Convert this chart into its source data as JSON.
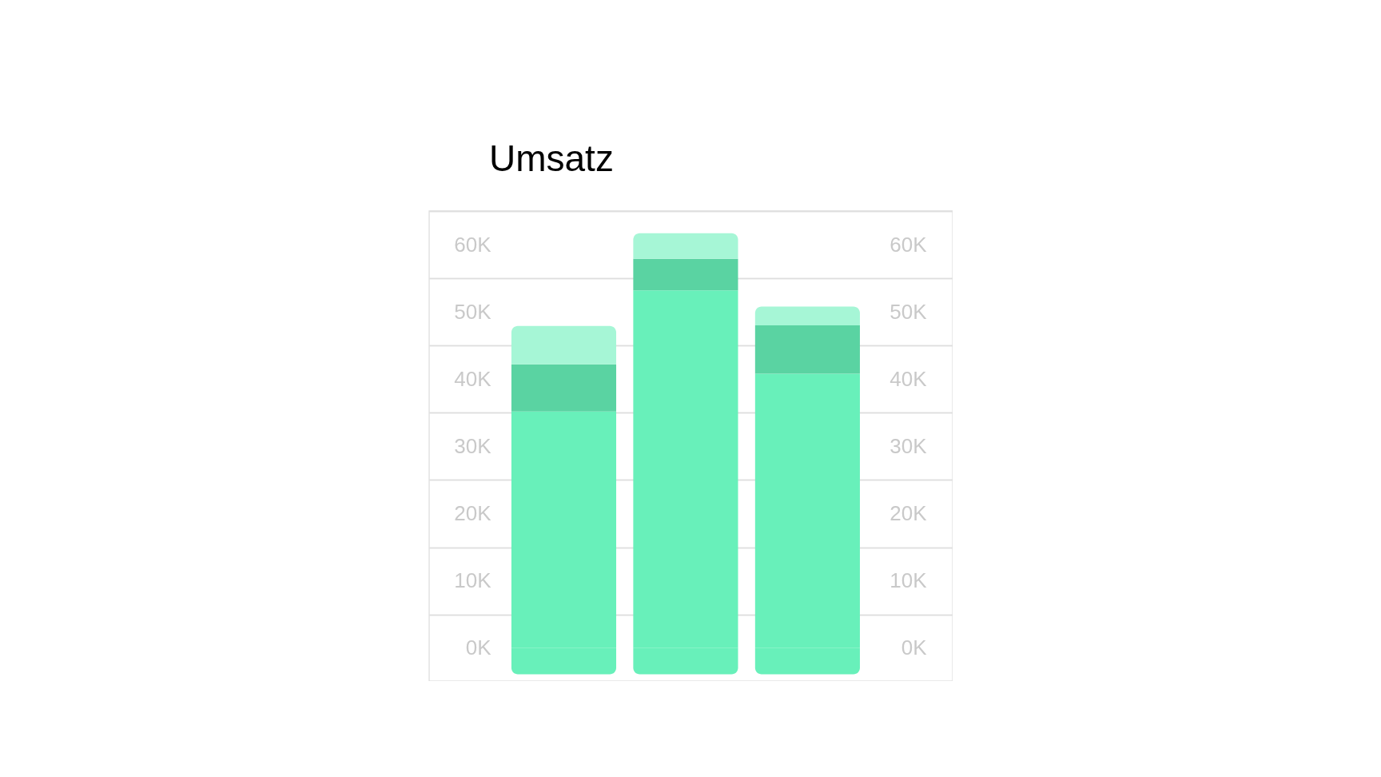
{
  "chart_data": {
    "type": "bar",
    "title": "Umsatz",
    "categories": [
      null,
      null,
      null
    ],
    "stacked": true,
    "series": [
      {
        "color": "#68f0ba",
        "values": [
          -3900,
          -3900,
          -3900
        ]
      },
      {
        "color": "#68f0ba",
        "values": [
          35200,
          53200,
          40800
        ]
      },
      {
        "color": "#5ad3a2",
        "values": [
          7000,
          4700,
          7200
        ]
      },
      {
        "color": "#a6f6d6",
        "values": [
          5700,
          3800,
          2800
        ]
      }
    ],
    "ylim": [
      -4900,
      65000
    ],
    "yticks": [
      {
        "value": 0,
        "label": "0K"
      },
      {
        "value": 10000,
        "label": "10K"
      },
      {
        "value": 20000,
        "label": "20K"
      },
      {
        "value": 30000,
        "label": "30K"
      },
      {
        "value": 40000,
        "label": "40K"
      },
      {
        "value": 50000,
        "label": "50K"
      },
      {
        "value": 60000,
        "label": "60K"
      },
      {
        "value": 5000,
        "label": null
      },
      {
        "value": 15000,
        "label": null
      },
      {
        "value": 25000,
        "label": null
      },
      {
        "value": 35000,
        "label": null
      },
      {
        "value": 45000,
        "label": null
      },
      {
        "value": 55000,
        "label": null
      },
      {
        "value": 65000,
        "label": null
      }
    ],
    "y2lim": [
      -4900,
      65000
    ],
    "y2ticks": [
      {
        "value": 0,
        "label": "0K"
      },
      {
        "value": 10000,
        "label": "10K"
      },
      {
        "value": 20000,
        "label": "20K"
      },
      {
        "value": 30000,
        "label": "30K"
      },
      {
        "value": 40000,
        "label": "40K"
      },
      {
        "value": 50000,
        "label": "50K"
      },
      {
        "value": 60000,
        "label": "60K"
      },
      {
        "value": 5000,
        "label": null
      },
      {
        "value": 15000,
        "label": null
      },
      {
        "value": 25000,
        "label": null
      },
      {
        "value": 35000,
        "label": null
      },
      {
        "value": 45000,
        "label": null
      },
      {
        "value": 55000,
        "label": null
      },
      {
        "value": 65000,
        "label": null
      }
    ],
    "grid": "y",
    "tick_labels": "y"
  }
}
